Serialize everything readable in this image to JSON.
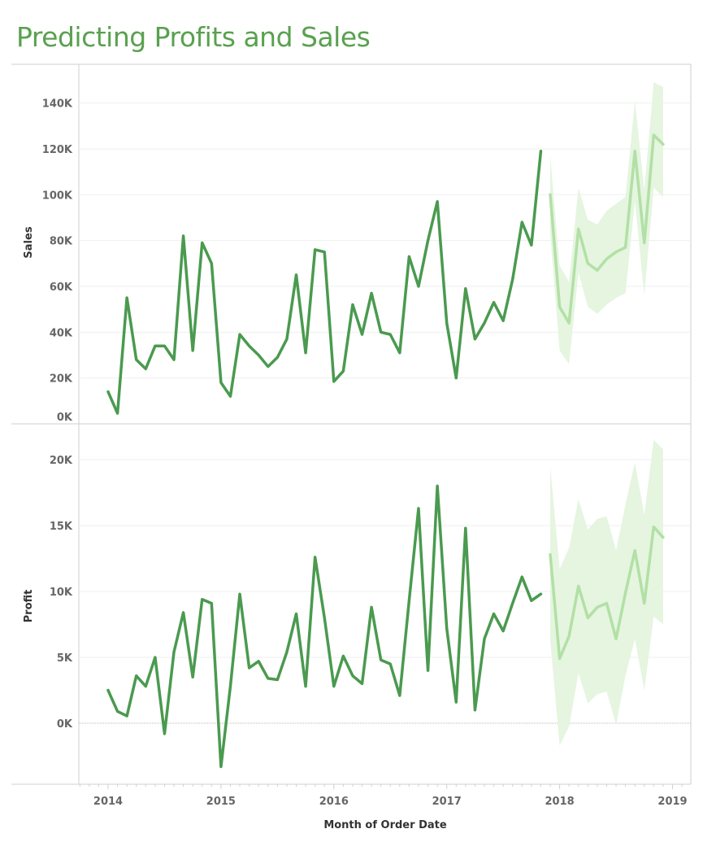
{
  "title": "Predicting Profits and Sales",
  "colors": {
    "title": "#59a14f",
    "actual": "#4a9a4f",
    "forecast": "#b2e0a5",
    "band": "#e5f5e0"
  },
  "chart_data": [
    {
      "type": "line",
      "title": "Sales",
      "ylabel": "Sales",
      "xlabel": "Month of Order Date",
      "ylim": [
        0,
        150
      ],
      "yunit": "K",
      "yticks": [
        "0K",
        "20K",
        "40K",
        "60K",
        "80K",
        "100K",
        "120K",
        "140K"
      ],
      "ytick_values": [
        0,
        20,
        40,
        60,
        80,
        100,
        120,
        140
      ],
      "x_start": "2014-01",
      "actual": [
        14,
        4.6,
        55,
        28,
        24,
        34,
        34,
        28,
        82,
        32,
        79,
        70,
        18,
        12,
        39,
        34,
        30,
        25,
        29,
        37,
        65,
        31,
        76,
        75,
        18.5,
        23,
        52,
        39,
        57,
        40,
        39,
        31,
        73,
        60,
        80,
        97,
        44,
        20,
        59,
        37,
        44,
        53,
        45,
        63,
        88,
        78,
        119
      ],
      "forecast_start": "2017-12",
      "forecast": [
        100,
        51,
        44,
        85,
        70,
        67,
        72,
        75,
        77,
        119,
        79,
        126,
        122
      ],
      "forecast_upper": [
        117,
        69,
        62,
        103,
        89,
        87,
        93,
        96,
        99,
        141,
        102,
        149,
        147
      ],
      "forecast_lower": [
        83,
        32,
        26,
        66,
        51,
        48,
        52,
        55,
        57,
        97,
        56,
        103,
        99
      ]
    },
    {
      "type": "line",
      "title": "Profit",
      "ylabel": "Profit",
      "xlabel": "Month of Order Date",
      "ylim": [
        -4.5,
        22
      ],
      "yunit": "K",
      "yticks": [
        "0K",
        "5K",
        "10K",
        "15K",
        "20K"
      ],
      "ytick_values": [
        0,
        5,
        10,
        15,
        20
      ],
      "x_start": "2014-01",
      "actual": [
        2.5,
        0.9,
        0.55,
        3.6,
        2.8,
        5.0,
        -0.8,
        5.4,
        8.4,
        3.5,
        9.4,
        9.1,
        -3.3,
        2.8,
        9.8,
        4.2,
        4.7,
        3.4,
        3.3,
        5.4,
        8.3,
        2.8,
        12.6,
        8.0,
        2.8,
        5.1,
        3.6,
        3.0,
        8.8,
        4.8,
        4.5,
        2.1,
        9.3,
        16.3,
        4.0,
        18.0,
        7.2,
        1.6,
        14.8,
        1.0,
        6.4,
        8.3,
        7.0,
        9.1,
        11.1,
        9.3,
        9.8
      ],
      "forecast_start": "2017-12",
      "forecast": [
        12.8,
        4.9,
        6.6,
        10.4,
        8.0,
        8.8,
        9.1,
        6.4,
        9.9,
        13.1,
        9.1,
        14.9,
        14.1
      ],
      "forecast_upper": [
        19.5,
        11.7,
        13.3,
        17.0,
        14.7,
        15.5,
        15.7,
        13.1,
        16.6,
        19.8,
        15.8,
        21.5,
        20.8
      ],
      "forecast_lower": [
        6.3,
        -1.7,
        -0.25,
        3.8,
        1.5,
        2.2,
        2.4,
        -0.1,
        3.6,
        6.4,
        2.5,
        8.1,
        7.5
      ]
    }
  ],
  "xaxis": {
    "label": "Month of Order Date",
    "ticks": [
      "2014",
      "2015",
      "2016",
      "2017",
      "2018",
      "2019"
    ]
  }
}
